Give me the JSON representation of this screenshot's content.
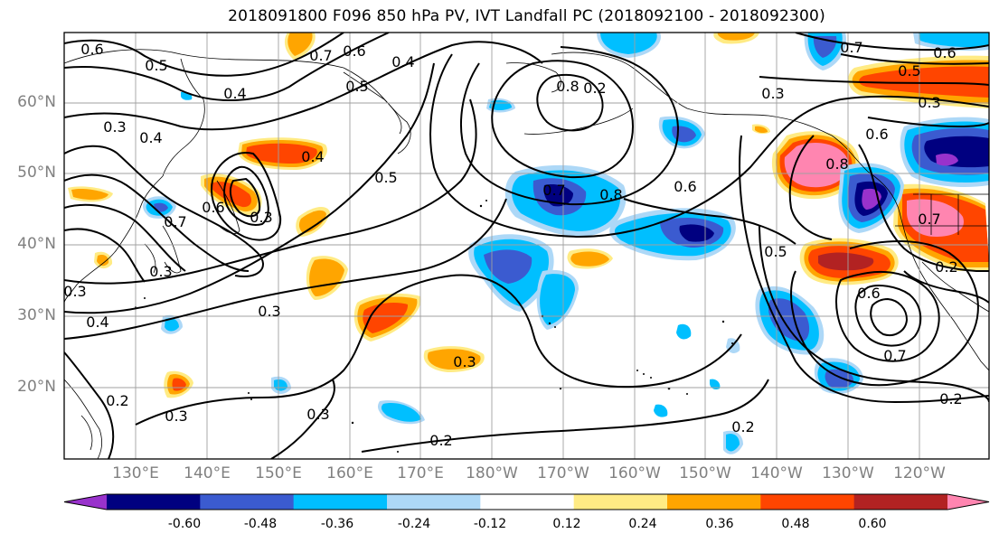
{
  "title": "2018091800 F096 850 hPa PV, IVT Landfall PC (2018092100 - 2018092300)",
  "lat_labels": [
    "60°N",
    "50°N",
    "40°N",
    "30°N",
    "20°N"
  ],
  "lon_labels": [
    "130°E",
    "140°E",
    "150°E",
    "160°E",
    "170°E",
    "180°W",
    "170°W",
    "160°W",
    "150°W",
    "140°W",
    "130°W",
    "120°W"
  ],
  "colorbar": {
    "levels": [
      "-0.60",
      "-0.48",
      "-0.36",
      "-0.24",
      "-0.12",
      "0.12",
      "0.24",
      "0.36",
      "0.48",
      "0.60"
    ],
    "colors": [
      "#9932CC",
      "#000080",
      "#3B5BD0",
      "#00BFFF",
      "#ADD8F7",
      "#FFFFFF",
      "#FFEB84",
      "#FFA500",
      "#FF4500",
      "#B22222",
      "#FF85B0"
    ]
  },
  "contour_labels": [
    {
      "text": "0.6"
    },
    {
      "text": "0.5"
    },
    {
      "text": "0.4"
    },
    {
      "text": "0.7"
    },
    {
      "text": "0.6"
    },
    {
      "text": "0.4"
    },
    {
      "text": "0.5"
    },
    {
      "text": "0.8"
    },
    {
      "text": "0.3"
    },
    {
      "text": "0.7"
    },
    {
      "text": "0.6"
    },
    {
      "text": "0.5"
    },
    {
      "text": "0.3"
    },
    {
      "text": "0.4"
    },
    {
      "text": "0.4"
    },
    {
      "text": "0.5"
    },
    {
      "text": "0.8"
    },
    {
      "text": "0.6"
    },
    {
      "text": "0.7"
    },
    {
      "text": "0.6"
    },
    {
      "text": "0.3"
    },
    {
      "text": "0.8"
    },
    {
      "text": "0.5"
    },
    {
      "text": "0.6"
    },
    {
      "text": "0.3"
    },
    {
      "text": "0.4"
    },
    {
      "text": "0.3"
    },
    {
      "text": "0.3"
    },
    {
      "text": "0.2"
    },
    {
      "text": "0.3"
    },
    {
      "text": "0.3"
    },
    {
      "text": "0.2"
    },
    {
      "text": "0.2"
    },
    {
      "text": "0.7"
    },
    {
      "text": "0.3"
    },
    {
      "text": "0.2"
    },
    {
      "text": "0.6"
    },
    {
      "text": "0.7"
    },
    {
      "text": "0.7"
    },
    {
      "text": "0.2"
    },
    {
      "text": "0.2"
    },
    {
      "text": "0.3"
    }
  ]
}
